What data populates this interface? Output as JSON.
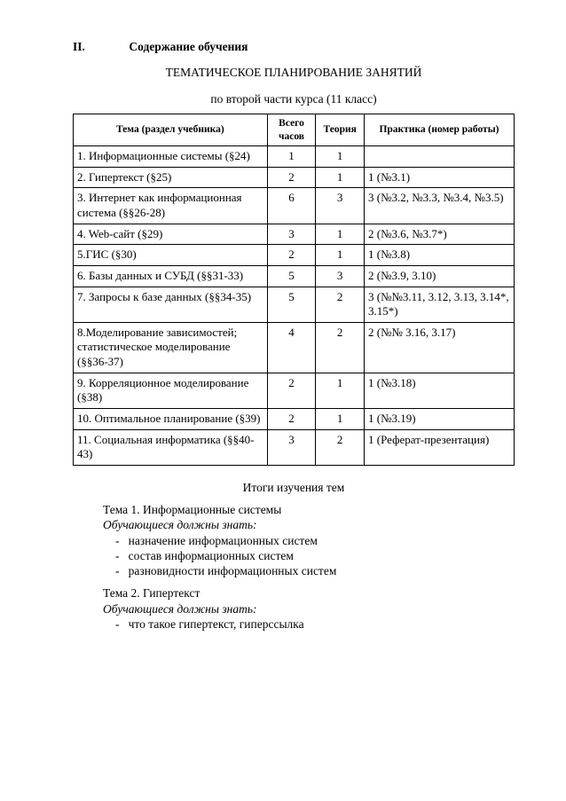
{
  "heading": {
    "section_number": "II.",
    "section_title": "Содержание обучения",
    "subtitle1": "ТЕМАТИЧЕСКОЕ ПЛАНИРОВАНИЕ ЗАНЯТИЙ",
    "subtitle2": "по второй части курса (11 класс)"
  },
  "table": {
    "columns": {
      "topic": "Тема (раздел учебника)",
      "hours": "Всего часов",
      "theory": "Теория",
      "practice": "Практика (номер работы)"
    },
    "rows": [
      {
        "topic": "1. Информационные системы (§24)",
        "hours": "1",
        "theory": "1",
        "practice": ""
      },
      {
        "topic": "2. Гипертекст (§25)",
        "hours": "2",
        "theory": "1",
        "practice": "1 (№3.1)"
      },
      {
        "topic": "3. Интернет как информационная система (§§26-28)",
        "hours": "6",
        "theory": "3",
        "practice": "3 (№3.2, №3.3, №3.4, №3.5)"
      },
      {
        "topic": "4. Web-сайт (§29)",
        "hours": "3",
        "theory": "1",
        "practice": "2 (№3.6, №3.7*)"
      },
      {
        "topic": "5.ГИС (§30)",
        "hours": "2",
        "theory": "1",
        "practice": "1 (№3.8)"
      },
      {
        "topic": "6. Базы данных и СУБД (§§31-33)",
        "hours": "5",
        "theory": "3",
        "practice": "2 (№3.9, 3.10)"
      },
      {
        "topic": "7. Запросы к базе данных (§§34-35)",
        "hours": "5",
        "theory": "2",
        "practice": "3 (№№3.11, 3.12, 3.13, 3.14*, 3.15*)"
      },
      {
        "topic": "8.Моделирование зависимостей; статистическое моделирование (§§36-37)",
        "hours": "4",
        "theory": "2",
        "practice": "2 (№№ 3.16, 3.17)"
      },
      {
        "topic": "9. Корреляционное моделирование (§38)",
        "hours": "2",
        "theory": "1",
        "practice": "1 (№3.18)"
      },
      {
        "topic": "10. Оптимальное планирование (§39)",
        "hours": "2",
        "theory": "1",
        "practice": "1 (№3.19)"
      },
      {
        "topic": "11. Социальная информатика (§§40-43)",
        "hours": "3",
        "theory": "2",
        "practice": "1 (Реферат-презентация)"
      }
    ]
  },
  "footer": {
    "results_heading": "Итоги изучения тем",
    "themes": [
      {
        "title": "Тема 1. Информационные системы",
        "sub": "Обучающиеся должны знать:",
        "items": [
          "назначение информационных систем",
          "состав информационных систем",
          "разновидности информационных систем"
        ]
      },
      {
        "title": "Тема 2. Гипертекст",
        "sub": "Обучающиеся должны знать:",
        "items": [
          "что такое гипертекст, гиперссылка"
        ]
      }
    ]
  }
}
